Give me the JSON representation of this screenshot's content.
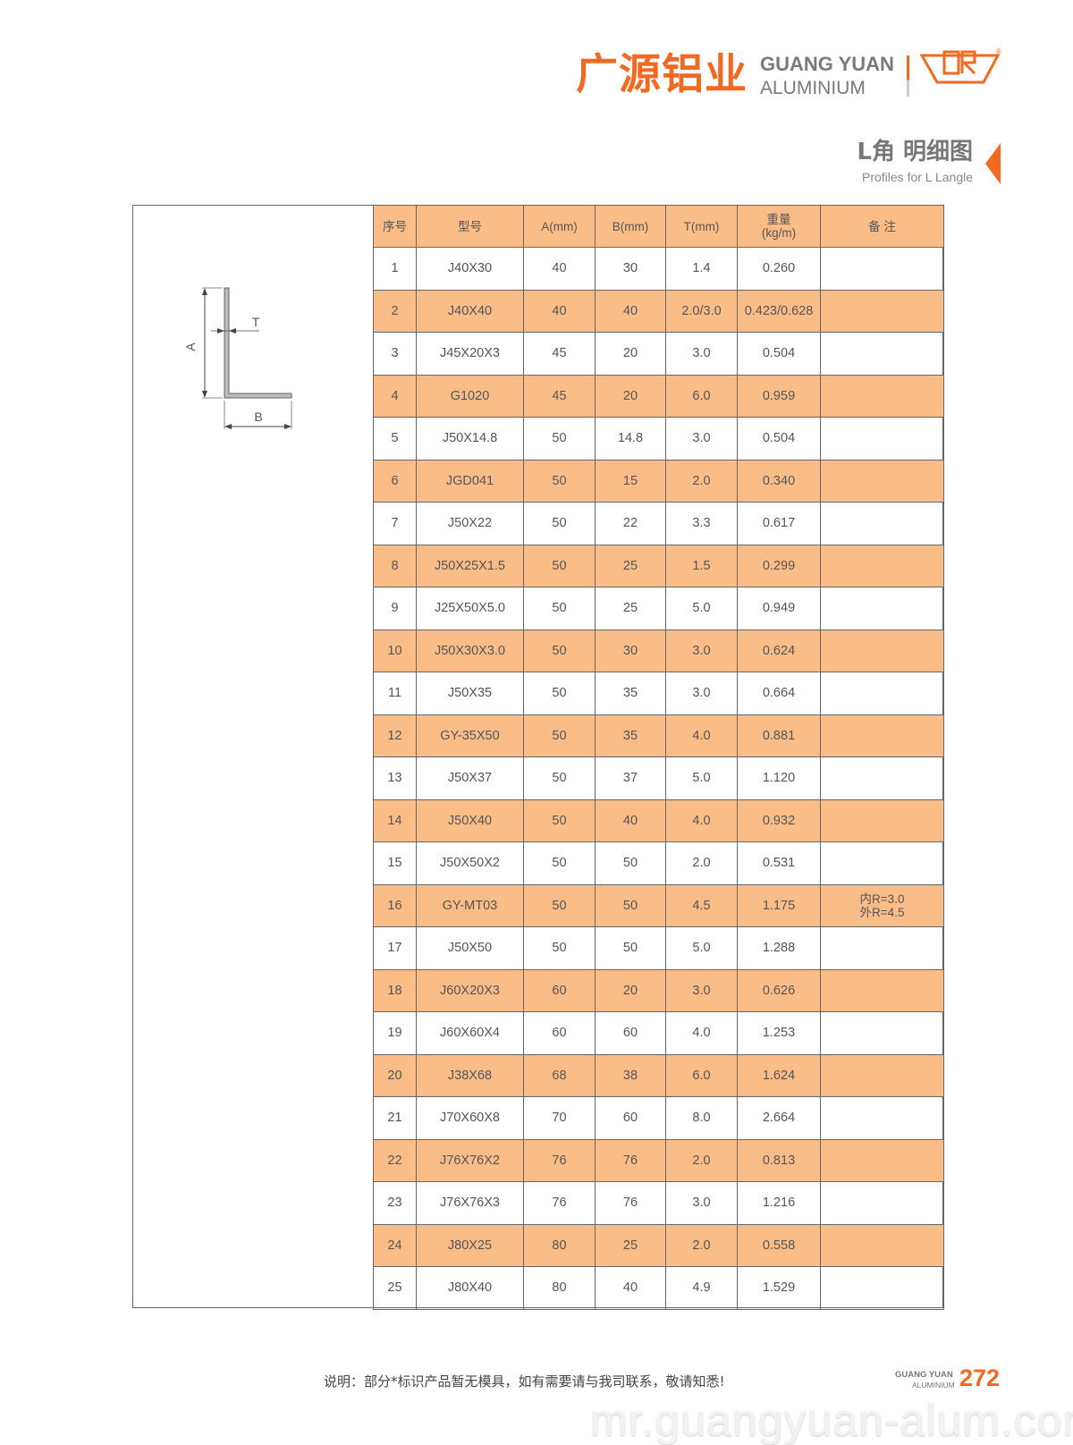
{
  "header": {
    "logo_cn": "广源铝业",
    "logo_en_line1": "GUANG YUAN",
    "logo_en_line2": "ALUMINIUM",
    "emblem_icon": "gr-emblem-icon",
    "registered_mark": "®",
    "title_cn": "L角 明细图",
    "title_en": "Profiles for L Langle"
  },
  "colors": {
    "brand_orange": "#f26a21",
    "row_highlight": "#fbbd88"
  },
  "diagram": {
    "label_a": "A",
    "label_b": "B",
    "label_t": "T"
  },
  "table": {
    "columns": [
      "序号",
      "型号",
      "A(mm)",
      "B(mm)",
      "T(mm)",
      "重量",
      "(kg/m)",
      "备 注"
    ],
    "rows": [
      [
        "1",
        "J40X30",
        "40",
        "30",
        "1.4",
        "0.260",
        "",
        ""
      ],
      [
        "2",
        "J40X40",
        "40",
        "40",
        "2.0/3.0",
        "0.423/0.628",
        "",
        ""
      ],
      [
        "3",
        "J45X20X3",
        "45",
        "20",
        "3.0",
        "0.504",
        "",
        ""
      ],
      [
        "4",
        "G1020",
        "45",
        "20",
        "6.0",
        "0.959",
        "",
        ""
      ],
      [
        "5",
        "J50X14.8",
        "50",
        "14.8",
        "3.0",
        "0.504",
        "",
        ""
      ],
      [
        "6",
        "JGD041",
        "50",
        "15",
        "2.0",
        "0.340",
        "",
        ""
      ],
      [
        "7",
        "J50X22",
        "50",
        "22",
        "3.3",
        "0.617",
        "",
        ""
      ],
      [
        "8",
        "J50X25X1.5",
        "50",
        "25",
        "1.5",
        "0.299",
        "",
        ""
      ],
      [
        "9",
        "J25X50X5.0",
        "50",
        "25",
        "5.0",
        "0.949",
        "",
        ""
      ],
      [
        "10",
        "J50X30X3.0",
        "50",
        "30",
        "3.0",
        "0.624",
        "",
        ""
      ],
      [
        "11",
        "J50X35",
        "50",
        "35",
        "3.0",
        "0.664",
        "",
        ""
      ],
      [
        "12",
        "GY-35X50",
        "50",
        "35",
        "4.0",
        "0.881",
        "",
        ""
      ],
      [
        "13",
        "J50X37",
        "50",
        "37",
        "5.0",
        "1.120",
        "",
        ""
      ],
      [
        "14",
        "J50X40",
        "50",
        "40",
        "4.0",
        "0.932",
        "",
        ""
      ],
      [
        "15",
        "J50X50X2",
        "50",
        "50",
        "2.0",
        "0.531",
        "",
        ""
      ],
      [
        "16",
        "GY-MT03",
        "50",
        "50",
        "4.5",
        "1.175",
        "内R=3.0",
        "外R=4.5"
      ],
      [
        "17",
        "J50X50",
        "50",
        "50",
        "5.0",
        "1.288",
        "",
        ""
      ],
      [
        "18",
        "J60X20X3",
        "60",
        "20",
        "3.0",
        "0.626",
        "",
        ""
      ],
      [
        "19",
        "J60X60X4",
        "60",
        "60",
        "4.0",
        "1.253",
        "",
        ""
      ],
      [
        "20",
        "J38X68",
        "68",
        "38",
        "6.0",
        "1.624",
        "",
        ""
      ],
      [
        "21",
        "J70X60X8",
        "70",
        "60",
        "8.0",
        "2.664",
        "",
        ""
      ],
      [
        "22",
        "J76X76X2",
        "76",
        "76",
        "2.0",
        "0.813",
        "",
        ""
      ],
      [
        "23",
        "J76X76X3",
        "76",
        "76",
        "3.0",
        "1.216",
        "",
        ""
      ],
      [
        "24",
        "J80X25",
        "80",
        "25",
        "2.0",
        "0.558",
        "",
        ""
      ],
      [
        "25",
        "J80X40",
        "80",
        "40",
        "4.9",
        "1.529",
        "",
        ""
      ]
    ]
  },
  "footer": {
    "note": "说明：部分*标识产品暂无模具，如有需要请与我司联系，敬请知悉!",
    "logo_en_line1": "GUANG YUAN",
    "logo_en_line2": "ALUMINIUM",
    "page_number": "272",
    "watermark": "mr.guangyuan-alum.com"
  }
}
